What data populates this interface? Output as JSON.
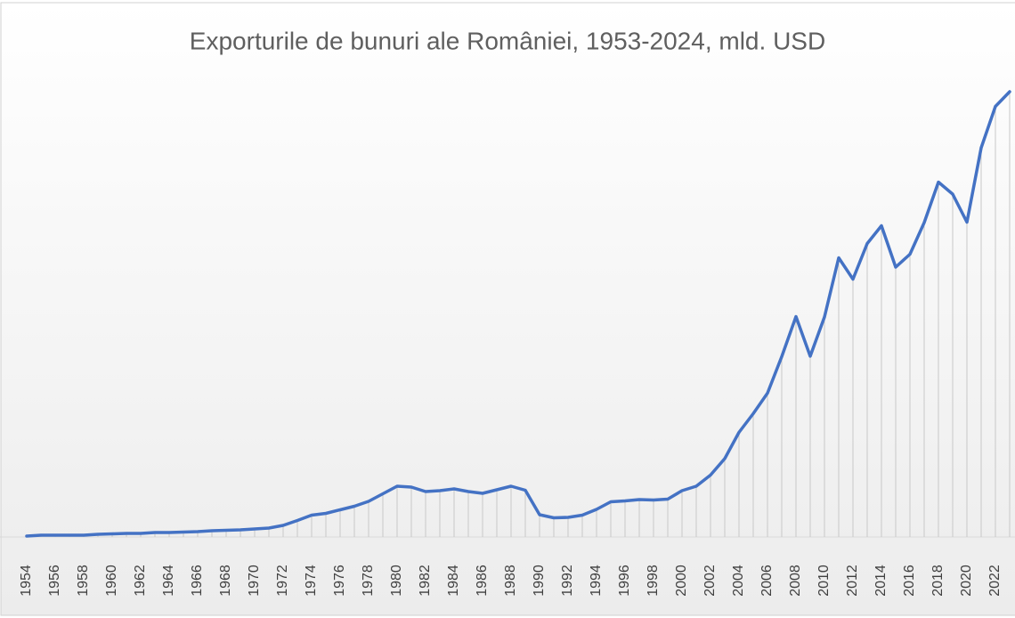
{
  "chart_data": {
    "type": "line",
    "title": "Exporturile de bunuri ale României, 1953-2024, mld. USD",
    "categories": [
      "1954",
      null,
      "1956",
      null,
      "1958",
      null,
      "1960",
      null,
      "1962",
      null,
      "1964",
      null,
      "1966",
      null,
      "1968",
      null,
      "1970",
      null,
      "1972",
      null,
      "1974",
      null,
      "1976",
      null,
      "1978",
      null,
      "1980",
      null,
      "1982",
      null,
      "1984",
      null,
      "1986",
      null,
      "1988",
      null,
      "1990",
      null,
      "1992",
      null,
      "1994",
      null,
      "1996",
      null,
      "1998",
      null,
      "2000",
      null,
      "2002",
      null,
      "2004",
      null,
      "2006",
      null,
      "2008",
      null,
      "2010",
      null,
      "2012",
      null,
      "2014",
      null,
      "2016",
      null,
      "2018",
      null,
      "2020",
      null,
      "2022",
      null
    ],
    "values": [
      0.2,
      0.4,
      0.4,
      0.4,
      0.4,
      0.6,
      0.7,
      0.8,
      0.8,
      1.0,
      1.0,
      1.1,
      1.2,
      1.4,
      1.5,
      1.6,
      1.8,
      2.0,
      2.6,
      3.7,
      4.9,
      5.3,
      6.1,
      6.9,
      8.0,
      9.7,
      11.4,
      11.2,
      10.2,
      10.4,
      10.8,
      10.2,
      9.8,
      10.6,
      11.4,
      10.5,
      5.0,
      4.3,
      4.4,
      4.9,
      6.2,
      7.9,
      8.1,
      8.4,
      8.3,
      8.5,
      10.4,
      11.4,
      13.9,
      17.6,
      23.5,
      27.7,
      32.3,
      40.5,
      49.5,
      40.6,
      49.4,
      62.7,
      57.9,
      65.9,
      69.9,
      60.6,
      63.5,
      70.6,
      79.7,
      77.0,
      70.7,
      87.4,
      96.7,
      100.0
    ],
    "color": "#4472c4",
    "ylim": [
      0,
      104
    ],
    "drop_lines": true
  }
}
